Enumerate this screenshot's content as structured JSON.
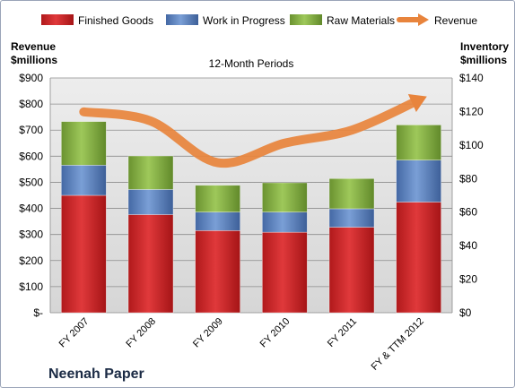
{
  "chart_data": {
    "type": "bar",
    "stacked": true,
    "title": "12-Month Periods",
    "company": "Neenah Paper",
    "categories": [
      "FY 2007",
      "FY 2008",
      "FY 2009",
      "FY 2010",
      "FY 2011",
      "FY & TTM 2012"
    ],
    "y_left": {
      "label": "Revenue\n$millions",
      "ylim": [
        0,
        900
      ],
      "ticks": [
        0,
        100,
        200,
        300,
        400,
        500,
        600,
        700,
        800,
        900
      ],
      "tick_labels": [
        "$-",
        "$100",
        "$200",
        "$300",
        "$400",
        "$500",
        "$600",
        "$700",
        "$800",
        "$900"
      ]
    },
    "y_right": {
      "label": "Inventory\n$millions",
      "ylim": [
        0,
        140
      ],
      "ticks": [
        0,
        20,
        40,
        60,
        80,
        100,
        120,
        140
      ],
      "tick_labels": [
        "$0",
        "$20",
        "$40",
        "$60",
        "$80",
        "$100",
        "$120",
        "$140"
      ]
    },
    "grid": true,
    "legend_position": "top",
    "series": [
      {
        "name": "Finished Goods",
        "kind": "bar",
        "axis": "right",
        "color": "#c0282a",
        "values": [
          70,
          58.5,
          49,
          48,
          51,
          66
        ]
      },
      {
        "name": "Work in Progress",
        "kind": "bar",
        "axis": "right",
        "color": "#4f77b6",
        "values": [
          18,
          15,
          11,
          12,
          11,
          25
        ]
      },
      {
        "name": "Raw Materials",
        "kind": "bar",
        "axis": "right",
        "color": "#77a035",
        "values": [
          26,
          20,
          16,
          17.5,
          18,
          21
        ]
      },
      {
        "name": "Revenue",
        "kind": "line",
        "axis": "left",
        "color": "#e8843c",
        "values": [
          770,
          735,
          575,
          650,
          700,
          815
        ]
      }
    ]
  }
}
